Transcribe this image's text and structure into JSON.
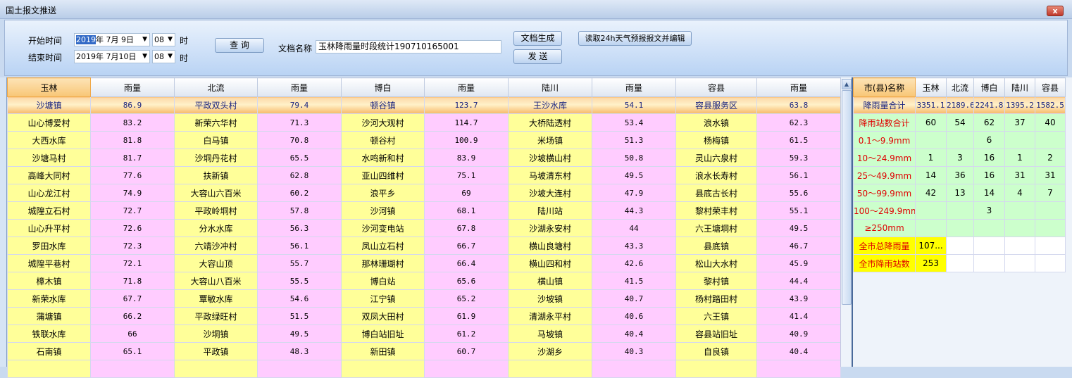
{
  "window": {
    "title": "国土报文推送",
    "close_label": "x"
  },
  "toolbar": {
    "start_label": "开始时间",
    "start_date_year": "2019",
    "start_date_rest": "年 7月 9日",
    "start_hour": "08",
    "hour_unit": "时",
    "end_label": "结束时间",
    "end_date": "2019年 7月10日",
    "end_hour": "08",
    "query_button": "查 询",
    "doc_name_label": "文档名称",
    "doc_name_value": "玉林降雨量时段统计190710165001",
    "generate_button": "文档生成",
    "send_button": "发 送",
    "read_button": "读取24h天气预报报文并编辑"
  },
  "left_table": {
    "headers": [
      "玉林",
      "雨量",
      "北流",
      "雨量",
      "博白",
      "雨量",
      "陆川",
      "雨量",
      "容县",
      "雨量"
    ],
    "top_row": [
      "沙塘镇",
      "86.9",
      "平政双头村",
      "79.4",
      "顿谷镇",
      "123.7",
      "王沙水库",
      "54.1",
      "容县服务区",
      "63.8"
    ],
    "rows": [
      [
        "山心博爱村",
        "83.2",
        "新荣六华村",
        "71.3",
        "沙河大观村",
        "114.7",
        "大桥陆透村",
        "53.4",
        "浪水镇",
        "62.3"
      ],
      [
        "大西水库",
        "81.8",
        "白马镇",
        "70.8",
        "顿谷村",
        "100.9",
        "米场镇",
        "51.3",
        "杨梅镇",
        "61.5"
      ],
      [
        "沙塘马村",
        "81.7",
        "沙垌丹花村",
        "65.5",
        "水鸣新和村",
        "83.9",
        "沙坡横山村",
        "50.8",
        "灵山六泉村",
        "59.3"
      ],
      [
        "高峰大同村",
        "77.6",
        "扶新镇",
        "62.8",
        "亚山四维村",
        "75.1",
        "马坡清东村",
        "49.5",
        "浪水长寿村",
        "56.1"
      ],
      [
        "山心龙江村",
        "74.9",
        "大容山六百米",
        "60.2",
        "浪平乡",
        "69",
        "沙坡大连村",
        "47.9",
        "县底古长村",
        "55.6"
      ],
      [
        "城隍立石村",
        "72.7",
        "平政岭垌村",
        "57.8",
        "沙河镇",
        "68.1",
        "陆川站",
        "44.3",
        "黎村荣丰村",
        "55.1"
      ],
      [
        "山心升平村",
        "72.6",
        "分水水库",
        "56.3",
        "沙河变电站",
        "67.8",
        "沙湖永安村",
        "44",
        "六王塘垌村",
        "49.5"
      ],
      [
        "罗田水库",
        "72.3",
        "六靖沙冲村",
        "56.1",
        "凤山立石村",
        "66.7",
        "横山良塘村",
        "43.3",
        "县底镇",
        "46.7"
      ],
      [
        "城隍平巷村",
        "72.1",
        "大容山顶",
        "55.7",
        "那林珊瑚村",
        "66.4",
        "横山四和村",
        "42.6",
        "松山大水村",
        "45.9"
      ],
      [
        "樟木镇",
        "71.8",
        "大容山八百米",
        "55.5",
        "博白站",
        "65.6",
        "横山镇",
        "41.5",
        "黎村镇",
        "44.4"
      ],
      [
        "新荣水库",
        "67.7",
        "覃敏水库",
        "54.6",
        "江宁镇",
        "65.2",
        "沙坡镇",
        "40.7",
        "杨村踏田村",
        "43.9"
      ],
      [
        "蒲塘镇",
        "66.2",
        "平政绿旺村",
        "51.5",
        "双凤大田村",
        "61.9",
        "清湖永平村",
        "40.6",
        "六王镇",
        "41.4"
      ],
      [
        "铁联水库",
        "66",
        "沙垌镇",
        "49.5",
        "博白站旧址",
        "61.2",
        "马坡镇",
        "40.4",
        "容县站旧址",
        "40.9"
      ],
      [
        "石南镇",
        "65.1",
        "平政镇",
        "48.3",
        "新田镇",
        "60.7",
        "沙湖乡",
        "40.3",
        "自良镇",
        "40.4"
      ],
      [
        "",
        "",
        "",
        "",
        "",
        "",
        "",
        "",
        "",
        ""
      ]
    ]
  },
  "right_table": {
    "headers": [
      "市(县)名称",
      "玉林",
      "北流",
      "博白",
      "陆川",
      "容县"
    ],
    "total_row": [
      "降雨量合计",
      "3351.1",
      "2189.6",
      "2241.8",
      "1395.2",
      "1582.5"
    ],
    "rows": [
      [
        "降雨站数合计",
        "60",
        "54",
        "62",
        "37",
        "40"
      ],
      [
        "0.1～9.9mm",
        "",
        "",
        "6",
        "",
        ""
      ],
      [
        "10～24.9mm",
        "1",
        "3",
        "16",
        "1",
        "2"
      ],
      [
        "25～49.9mm",
        "14",
        "36",
        "16",
        "31",
        "31"
      ],
      [
        "50～99.9mm",
        "42",
        "13",
        "14",
        "4",
        "7"
      ],
      [
        "100～249.9mm",
        "",
        "",
        "3",
        "",
        ""
      ],
      [
        "≥250mm",
        "",
        "",
        "",
        "",
        ""
      ]
    ],
    "city_rows": [
      [
        "全市总降雨量",
        "107..."
      ],
      [
        "全市降雨站数",
        "253"
      ]
    ]
  }
}
